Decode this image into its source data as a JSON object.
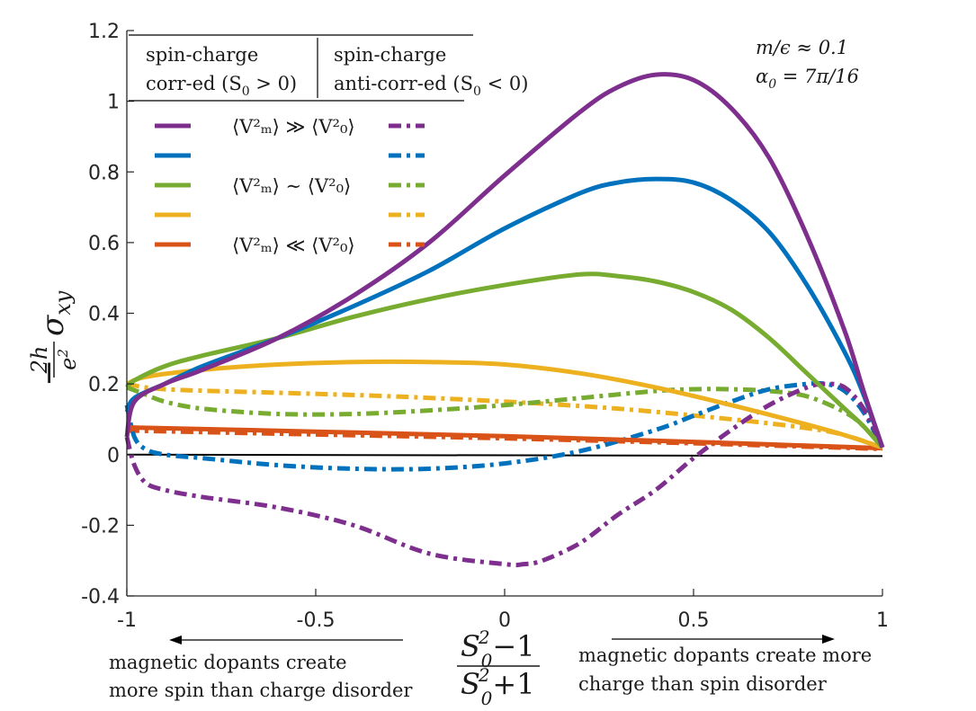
{
  "chart_data": {
    "type": "line",
    "xlabel": {
      "numerator": "S",
      "sub": "0",
      "sup": "2",
      "num_tail": "−1",
      "den_tail": "+1"
    },
    "ylabel": {
      "prefix": "−",
      "frac_num": "2h",
      "frac_den": "e",
      "frac_den_sup": "2",
      "sigma": "σ",
      "sigma_sub": "xy"
    },
    "xlim": [
      -1,
      1
    ],
    "ylim": [
      -0.4,
      1.2
    ],
    "x_ticks": [
      -1,
      -0.5,
      0,
      0.5,
      1
    ],
    "x_tick_labels": [
      "-1",
      "-0.5",
      "0",
      "0.5",
      "1"
    ],
    "y_ticks": [
      -0.4,
      -0.2,
      0,
      0.2,
      0.4,
      0.6,
      0.8,
      1,
      1.2
    ],
    "y_tick_labels": [
      "-0.4",
      "-0.2",
      "0",
      "0.2",
      "0.4",
      "0.6",
      "0.8",
      "1",
      "1.2"
    ],
    "parameters": {
      "line1": "m/ϵ ≈ 0.1",
      "line2": "α",
      "line2_sub": "0",
      "line2_tail": " = 7π/16"
    },
    "legend": {
      "left_header": [
        "spin-charge",
        "corr-ed (S",
        "0",
        " > 0)"
      ],
      "right_header": [
        "spin-charge",
        "anti-corr-ed (S",
        "0",
        " < 0)"
      ],
      "rows": [
        {
          "label": "⟨V²ₘ⟩ ≫ ⟨V²₀⟩",
          "l1": "⟨V",
          "rel": " ≫ ",
          "color": "#7e2f8e"
        },
        {
          "label": "",
          "color": "#0072bd"
        },
        {
          "label": "⟨V²ₘ⟩ ∼ ⟨V²₀⟩",
          "l1": "⟨V",
          "rel": " ∼ ",
          "color": "#77ac30"
        },
        {
          "label": "",
          "color": "#edb120"
        },
        {
          "label": "⟨V²ₘ⟩ ≪ ⟨V²₀⟩",
          "l1": "⟨V",
          "rel": " ≪ ",
          "color": "#d95319"
        }
      ]
    },
    "annotations": {
      "left": [
        "magnetic dopants create",
        "more spin than charge disorder"
      ],
      "right": [
        "magnetic dopants create more",
        "charge than spin disorder"
      ]
    },
    "series": [
      {
        "name": "purple-solid",
        "color": "#7e2f8e",
        "dash": "solid",
        "x": [
          -1,
          -0.98,
          -0.9,
          -0.8,
          -0.6,
          -0.4,
          -0.2,
          0,
          0.2,
          0.3,
          0.4,
          0.5,
          0.6,
          0.7,
          0.8,
          0.9,
          0.95,
          1
        ],
        "y": [
          0.05,
          0.15,
          0.2,
          0.24,
          0.33,
          0.45,
          0.6,
          0.79,
          0.97,
          1.04,
          1.075,
          1.06,
          0.98,
          0.84,
          0.62,
          0.35,
          0.18,
          0.02
        ]
      },
      {
        "name": "blue-solid",
        "color": "#0072bd",
        "dash": "solid",
        "x": [
          -1,
          -0.98,
          -0.9,
          -0.8,
          -0.6,
          -0.4,
          -0.2,
          0,
          0.2,
          0.3,
          0.4,
          0.5,
          0.6,
          0.7,
          0.8,
          0.9,
          0.95,
          1
        ],
        "y": [
          0.12,
          0.16,
          0.2,
          0.25,
          0.33,
          0.42,
          0.52,
          0.64,
          0.74,
          0.77,
          0.78,
          0.77,
          0.72,
          0.63,
          0.48,
          0.29,
          0.17,
          0.02
        ]
      },
      {
        "name": "green-solid",
        "color": "#77ac30",
        "dash": "solid",
        "x": [
          -1,
          -0.98,
          -0.9,
          -0.8,
          -0.6,
          -0.4,
          -0.2,
          0,
          0.2,
          0.3,
          0.4,
          0.5,
          0.6,
          0.7,
          0.8,
          0.9,
          0.95,
          1
        ],
        "y": [
          0.19,
          0.21,
          0.25,
          0.28,
          0.33,
          0.39,
          0.44,
          0.48,
          0.51,
          0.505,
          0.49,
          0.46,
          0.41,
          0.33,
          0.23,
          0.13,
          0.08,
          0.02
        ]
      },
      {
        "name": "yellow-solid",
        "color": "#edb120",
        "dash": "solid",
        "x": [
          -1,
          -0.95,
          -0.8,
          -0.6,
          -0.4,
          -0.2,
          0,
          0.2,
          0.4,
          0.6,
          0.8,
          0.9,
          1
        ],
        "y": [
          0.2,
          0.22,
          0.24,
          0.255,
          0.262,
          0.262,
          0.255,
          0.23,
          0.19,
          0.14,
          0.085,
          0.055,
          0.02
        ]
      },
      {
        "name": "orange-solid",
        "color": "#d95319",
        "dash": "solid",
        "x": [
          -1,
          -0.5,
          0,
          0.5,
          1
        ],
        "y": [
          0.077,
          0.065,
          0.052,
          0.036,
          0.018
        ]
      },
      {
        "name": "purple-dashed",
        "color": "#7e2f8e",
        "dash": "dashdot",
        "x": [
          -1,
          -0.98,
          -0.95,
          -0.9,
          -0.8,
          -0.6,
          -0.4,
          -0.2,
          0,
          0.05,
          0.1,
          0.2,
          0.3,
          0.4,
          0.5,
          0.6,
          0.7,
          0.8,
          0.85,
          0.9,
          0.95,
          1
        ],
        "y": [
          0.05,
          -0.03,
          -0.08,
          -0.1,
          -0.12,
          -0.15,
          -0.2,
          -0.28,
          -0.31,
          -0.31,
          -0.3,
          -0.25,
          -0.17,
          -0.1,
          -0.01,
          0.07,
          0.14,
          0.19,
          0.2,
          0.19,
          0.13,
          0.02
        ]
      },
      {
        "name": "blue-dashed",
        "color": "#0072bd",
        "dash": "dashdot",
        "x": [
          -1,
          -0.98,
          -0.95,
          -0.9,
          -0.8,
          -0.6,
          -0.4,
          -0.2,
          0,
          0.2,
          0.4,
          0.5,
          0.6,
          0.7,
          0.8,
          0.85,
          0.9,
          0.95,
          1
        ],
        "y": [
          0.14,
          0.05,
          0.015,
          0.0,
          -0.01,
          -0.03,
          -0.04,
          -0.04,
          -0.025,
          0.01,
          0.07,
          0.11,
          0.15,
          0.185,
          0.2,
          0.2,
          0.18,
          0.12,
          0.02
        ]
      },
      {
        "name": "green-dashed",
        "color": "#77ac30",
        "dash": "dashdot",
        "x": [
          -1,
          -0.95,
          -0.9,
          -0.8,
          -0.6,
          -0.4,
          -0.2,
          0,
          0.2,
          0.4,
          0.5,
          0.6,
          0.7,
          0.8,
          0.9,
          0.95,
          1
        ],
        "y": [
          0.19,
          0.17,
          0.15,
          0.13,
          0.115,
          0.115,
          0.125,
          0.14,
          0.16,
          0.18,
          0.185,
          0.185,
          0.18,
          0.165,
          0.12,
          0.08,
          0.02
        ]
      },
      {
        "name": "yellow-dashed",
        "color": "#edb120",
        "dash": "dashdot",
        "x": [
          -1,
          -0.9,
          -0.6,
          -0.3,
          0,
          0.3,
          0.6,
          0.8,
          0.9,
          1
        ],
        "y": [
          0.2,
          0.185,
          0.175,
          0.165,
          0.15,
          0.13,
          0.1,
          0.075,
          0.055,
          0.02
        ]
      },
      {
        "name": "orange-dashed",
        "color": "#d95319",
        "dash": "dashdot",
        "x": [
          -1,
          -0.5,
          0,
          0.5,
          1
        ],
        "y": [
          0.068,
          0.057,
          0.046,
          0.032,
          0.016
        ]
      }
    ]
  }
}
